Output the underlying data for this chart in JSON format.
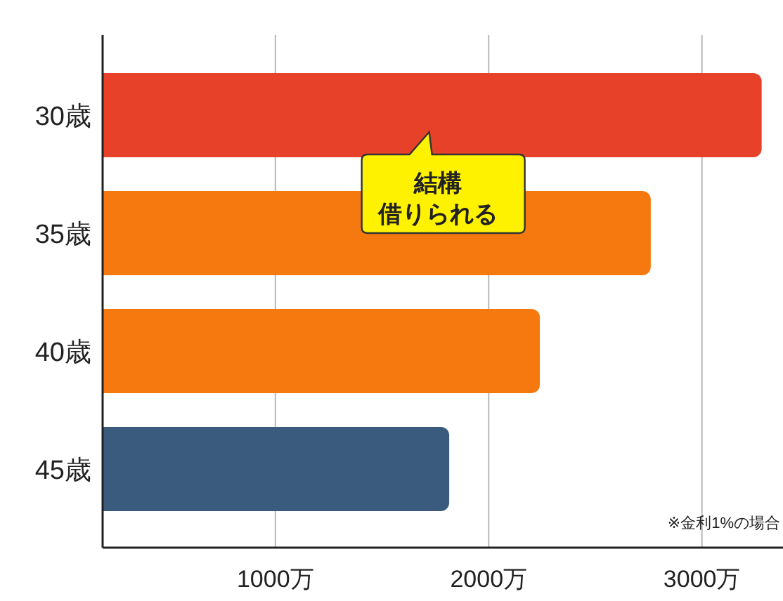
{
  "chart_data": {
    "type": "bar",
    "orientation": "horizontal",
    "categories": [
      "30歳",
      "35歳",
      "40歳",
      "45歳"
    ],
    "values": [
      3280,
      2760,
      2240,
      1815
    ],
    "colors": [
      "#e8412a",
      "#f5790f",
      "#f5790f",
      "#3a5a7e"
    ],
    "xlim": [
      190,
      3380
    ],
    "xticks": [
      {
        "value": 1000,
        "label": "1000万"
      },
      {
        "value": 2000,
        "label": "2000万"
      },
      {
        "value": 3000,
        "label": "3000万"
      }
    ],
    "grid": "x",
    "annotations": [
      "結構",
      "借りられる",
      "※金利1%の場合"
    ]
  }
}
